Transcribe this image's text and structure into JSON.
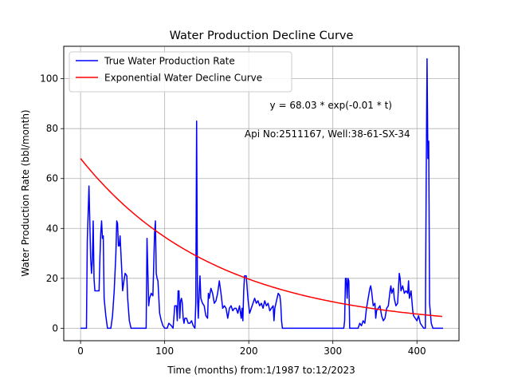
{
  "chart_data": {
    "type": "line",
    "title": "Water Production Decline Curve",
    "xlabel": "Time (months) from:1/1987 to:12/2023",
    "ylabel": "Water Production Rate (bbl/month)",
    "xlim": [
      -20,
      450
    ],
    "ylim": [
      -5,
      113
    ],
    "xticks": [
      0,
      100,
      200,
      300,
      400
    ],
    "yticks": [
      0,
      20,
      40,
      60,
      80,
      100
    ],
    "grid": true,
    "legend_position": "top-left",
    "annotations": [
      {
        "text": "y = 68.03 * exp(-0.01 * t)",
        "x": 225,
        "y": 88
      },
      {
        "text": "Api No:2511167, Well:38-61-SX-34",
        "x": 195,
        "y": 76.5
      }
    ],
    "series": [
      {
        "name": "True Water Production Rate",
        "color": "#0000ff",
        "points": [
          [
            0,
            0
          ],
          [
            7,
            0
          ],
          [
            8,
            35
          ],
          [
            10,
            57
          ],
          [
            12,
            28
          ],
          [
            13,
            22
          ],
          [
            14,
            27
          ],
          [
            15,
            43
          ],
          [
            16,
            20
          ],
          [
            17,
            15
          ],
          [
            20,
            15
          ],
          [
            22,
            15
          ],
          [
            23,
            28
          ],
          [
            24,
            38
          ],
          [
            25,
            43
          ],
          [
            26,
            36
          ],
          [
            27,
            37
          ],
          [
            28,
            12
          ],
          [
            30,
            5
          ],
          [
            32,
            0
          ],
          [
            36,
            0
          ],
          [
            38,
            5
          ],
          [
            40,
            15
          ],
          [
            42,
            30
          ],
          [
            43,
            43
          ],
          [
            44,
            42
          ],
          [
            45,
            33
          ],
          [
            46,
            33
          ],
          [
            47,
            37
          ],
          [
            48,
            30
          ],
          [
            49,
            23
          ],
          [
            50,
            15
          ],
          [
            52,
            20
          ],
          [
            53,
            22
          ],
          [
            55,
            21
          ],
          [
            56,
            12
          ],
          [
            58,
            3
          ],
          [
            60,
            0
          ],
          [
            65,
            0
          ],
          [
            70,
            0
          ],
          [
            75,
            0
          ],
          [
            78,
            0
          ],
          [
            79,
            36
          ],
          [
            80,
            23
          ],
          [
            81,
            9
          ],
          [
            82,
            12
          ],
          [
            84,
            14
          ],
          [
            86,
            13
          ],
          [
            88,
            38
          ],
          [
            89,
            43
          ],
          [
            90,
            22
          ],
          [
            91,
            20
          ],
          [
            92,
            19
          ],
          [
            94,
            6
          ],
          [
            96,
            3
          ],
          [
            98,
            1
          ],
          [
            100,
            0
          ],
          [
            103,
            0
          ],
          [
            105,
            2
          ],
          [
            108,
            1
          ],
          [
            110,
            0
          ],
          [
            112,
            9
          ],
          [
            114,
            9
          ],
          [
            115,
            3
          ],
          [
            116,
            15
          ],
          [
            117,
            15
          ],
          [
            118,
            4
          ],
          [
            119,
            11
          ],
          [
            120,
            12
          ],
          [
            121,
            10
          ],
          [
            122,
            4
          ],
          [
            123,
            2
          ],
          [
            124,
            4
          ],
          [
            126,
            4
          ],
          [
            128,
            2
          ],
          [
            130,
            2
          ],
          [
            132,
            3
          ],
          [
            134,
            1
          ],
          [
            136,
            0
          ],
          [
            137,
            10
          ],
          [
            138,
            83
          ],
          [
            139,
            13
          ],
          [
            140,
            4
          ],
          [
            141,
            14
          ],
          [
            142,
            21
          ],
          [
            143,
            12
          ],
          [
            145,
            10
          ],
          [
            147,
            9
          ],
          [
            149,
            5
          ],
          [
            151,
            4
          ],
          [
            152,
            14
          ],
          [
            153,
            12
          ],
          [
            155,
            16
          ],
          [
            157,
            14
          ],
          [
            159,
            10
          ],
          [
            161,
            11
          ],
          [
            163,
            14
          ],
          [
            165,
            19
          ],
          [
            167,
            14
          ],
          [
            169,
            8
          ],
          [
            171,
            9
          ],
          [
            173,
            8
          ],
          [
            175,
            4
          ],
          [
            177,
            8
          ],
          [
            179,
            9
          ],
          [
            181,
            7
          ],
          [
            183,
            8
          ],
          [
            185,
            8
          ],
          [
            187,
            6
          ],
          [
            189,
            9
          ],
          [
            191,
            4
          ],
          [
            192,
            8
          ],
          [
            193,
            3
          ],
          [
            194,
            15
          ],
          [
            195,
            21
          ],
          [
            197,
            21
          ],
          [
            199,
            12
          ],
          [
            201,
            6
          ],
          [
            203,
            8
          ],
          [
            205,
            10
          ],
          [
            207,
            12
          ],
          [
            209,
            10
          ],
          [
            211,
            11
          ],
          [
            213,
            9
          ],
          [
            215,
            10
          ],
          [
            217,
            8
          ],
          [
            219,
            11
          ],
          [
            221,
            9
          ],
          [
            223,
            10
          ],
          [
            225,
            7
          ],
          [
            227,
            8
          ],
          [
            229,
            9
          ],
          [
            230,
            3
          ],
          [
            231,
            8
          ],
          [
            233,
            11
          ],
          [
            235,
            14
          ],
          [
            237,
            13
          ],
          [
            238,
            10
          ],
          [
            239,
            3
          ],
          [
            240,
            0
          ],
          [
            250,
            0
          ],
          [
            260,
            0
          ],
          [
            270,
            0
          ],
          [
            280,
            0
          ],
          [
            290,
            0
          ],
          [
            300,
            0
          ],
          [
            310,
            0
          ],
          [
            313,
            0
          ],
          [
            314,
            3
          ],
          [
            315,
            20
          ],
          [
            316,
            20
          ],
          [
            317,
            12
          ],
          [
            318,
            20
          ],
          [
            319,
            19
          ],
          [
            320,
            0
          ],
          [
            325,
            0
          ],
          [
            330,
            0
          ],
          [
            332,
            2
          ],
          [
            334,
            1
          ],
          [
            336,
            3
          ],
          [
            338,
            2
          ],
          [
            340,
            8
          ],
          [
            342,
            12
          ],
          [
            344,
            16
          ],
          [
            345,
            17
          ],
          [
            346,
            15
          ],
          [
            348,
            9
          ],
          [
            350,
            10
          ],
          [
            351,
            4
          ],
          [
            352,
            7
          ],
          [
            354,
            8
          ],
          [
            356,
            9
          ],
          [
            358,
            5
          ],
          [
            360,
            3
          ],
          [
            362,
            4
          ],
          [
            364,
            8
          ],
          [
            366,
            9
          ],
          [
            368,
            15
          ],
          [
            369,
            17
          ],
          [
            370,
            14
          ],
          [
            372,
            16
          ],
          [
            373,
            12
          ],
          [
            375,
            9
          ],
          [
            377,
            10
          ],
          [
            379,
            22
          ],
          [
            380,
            20
          ],
          [
            381,
            15
          ],
          [
            383,
            17
          ],
          [
            385,
            14
          ],
          [
            387,
            15
          ],
          [
            389,
            14
          ],
          [
            390,
            19
          ],
          [
            391,
            12
          ],
          [
            393,
            15
          ],
          [
            395,
            7
          ],
          [
            396,
            5
          ],
          [
            398,
            4
          ],
          [
            400,
            3
          ],
          [
            402,
            5
          ],
          [
            404,
            2
          ],
          [
            406,
            1
          ],
          [
            408,
            0
          ],
          [
            410,
            0
          ],
          [
            411,
            60
          ],
          [
            412,
            108
          ],
          [
            413,
            68
          ],
          [
            414,
            75
          ],
          [
            415,
            10
          ],
          [
            417,
            2
          ],
          [
            419,
            0
          ],
          [
            425,
            0
          ],
          [
            431,
            0
          ]
        ]
      },
      {
        "name": "Exponential Water Decline Curve",
        "color": "#ff0000",
        "fit": {
          "a": 68.03,
          "b": 0.0062
        },
        "x_range": [
          0,
          431
        ]
      }
    ]
  }
}
